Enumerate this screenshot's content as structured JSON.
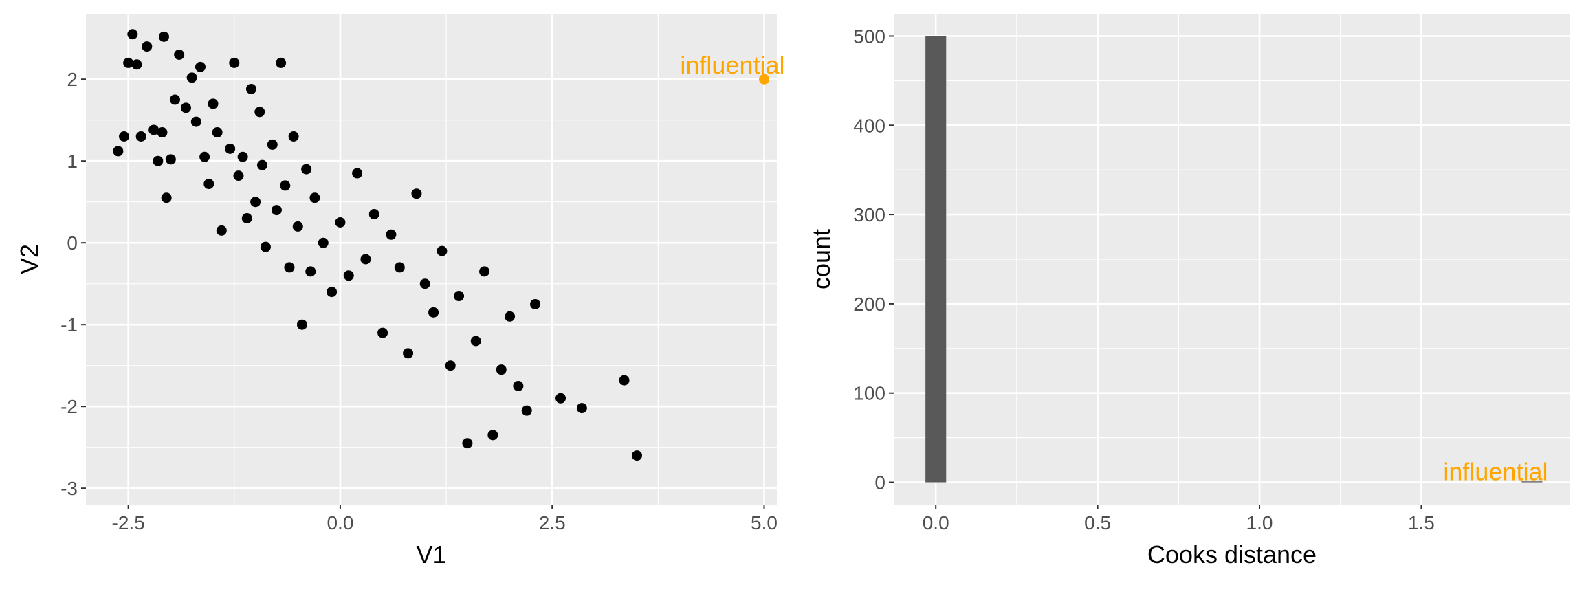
{
  "chart_data": [
    {
      "type": "scatter",
      "xlabel": "V1",
      "ylabel": "V2",
      "xlim": [
        -3.0,
        5.15
      ],
      "ylim": [
        -3.2,
        2.8
      ],
      "xticks": [
        -2.5,
        0.0,
        2.5,
        5.0
      ],
      "xtick_labels": [
        "-2.5",
        "0.0",
        "2.5",
        "5.0"
      ],
      "yticks": [
        -3,
        -2,
        -1,
        0,
        1,
        2
      ],
      "ytick_labels": [
        "-3",
        "-2",
        "-1",
        "0",
        "1",
        "2"
      ],
      "grid": true,
      "colors": {
        "points": "#000000",
        "highlight": "#FFA500"
      },
      "highlight": {
        "x": 5.0,
        "y": 2.0,
        "label": "influential"
      },
      "points": {
        "x": [
          -2.62,
          -2.55,
          -2.5,
          -2.45,
          -2.4,
          -2.35,
          -2.28,
          -2.2,
          -2.15,
          -2.1,
          -2.08,
          -2.05,
          -2.0,
          -1.95,
          -1.9,
          -1.82,
          -1.75,
          -1.7,
          -1.65,
          -1.6,
          -1.55,
          -1.5,
          -1.45,
          -1.4,
          -1.3,
          -1.25,
          -1.2,
          -1.15,
          -1.1,
          -1.05,
          -1.0,
          -0.95,
          -0.92,
          -0.88,
          -0.8,
          -0.75,
          -0.7,
          -0.65,
          -0.6,
          -0.55,
          -0.5,
          -0.45,
          -0.4,
          -0.35,
          -0.3,
          -0.2,
          -0.1,
          0.0,
          0.1,
          0.2,
          0.3,
          0.4,
          0.5,
          0.6,
          0.7,
          0.8,
          0.9,
          1.0,
          1.1,
          1.2,
          1.3,
          1.4,
          1.5,
          1.6,
          1.7,
          1.8,
          1.9,
          2.0,
          2.1,
          2.2,
          2.3,
          2.6,
          2.85,
          3.35,
          3.5
        ],
        "y": [
          1.12,
          1.3,
          2.2,
          2.55,
          2.18,
          1.3,
          2.4,
          1.38,
          1.0,
          1.35,
          2.52,
          0.55,
          1.02,
          1.75,
          2.3,
          1.65,
          2.02,
          1.48,
          2.15,
          1.05,
          0.72,
          1.7,
          1.35,
          0.15,
          1.15,
          2.2,
          0.82,
          1.05,
          0.3,
          1.88,
          0.5,
          1.6,
          0.95,
          -0.05,
          1.2,
          0.4,
          2.2,
          0.7,
          -0.3,
          1.3,
          0.2,
          -1.0,
          0.9,
          -0.35,
          0.55,
          0.0,
          -0.6,
          0.25,
          -0.4,
          0.85,
          -0.2,
          0.35,
          -1.1,
          0.1,
          -0.3,
          -1.35,
          0.6,
          -0.5,
          -0.85,
          -0.1,
          -1.5,
          -0.65,
          -2.45,
          -1.2,
          -0.35,
          -2.35,
          -1.55,
          -0.9,
          -1.75,
          -2.05,
          -0.75,
          -1.9,
          -2.02,
          -1.68,
          -2.6
        ]
      }
    },
    {
      "type": "bar",
      "xlabel": "Cooks distance",
      "ylabel": "count",
      "xlim": [
        -0.13,
        1.96
      ],
      "ylim": [
        -25,
        525
      ],
      "xticks": [
        0.0,
        0.5,
        1.0,
        1.5
      ],
      "xtick_labels": [
        "0.0",
        "0.5",
        "1.0",
        "1.5"
      ],
      "yticks": [
        0,
        100,
        200,
        300,
        400,
        500
      ],
      "ytick_labels": [
        "0",
        "100",
        "200",
        "300",
        "400",
        "500"
      ],
      "grid": true,
      "colors": {
        "bar": "#595959",
        "highlight": "#FFA500"
      },
      "bins": [
        {
          "x0": -0.032,
          "x1": 0.032,
          "count": 500
        },
        {
          "x0": 1.81,
          "x1": 1.874,
          "count": 1
        }
      ],
      "highlight": {
        "x": 1.84,
        "label": "influential"
      }
    }
  ]
}
